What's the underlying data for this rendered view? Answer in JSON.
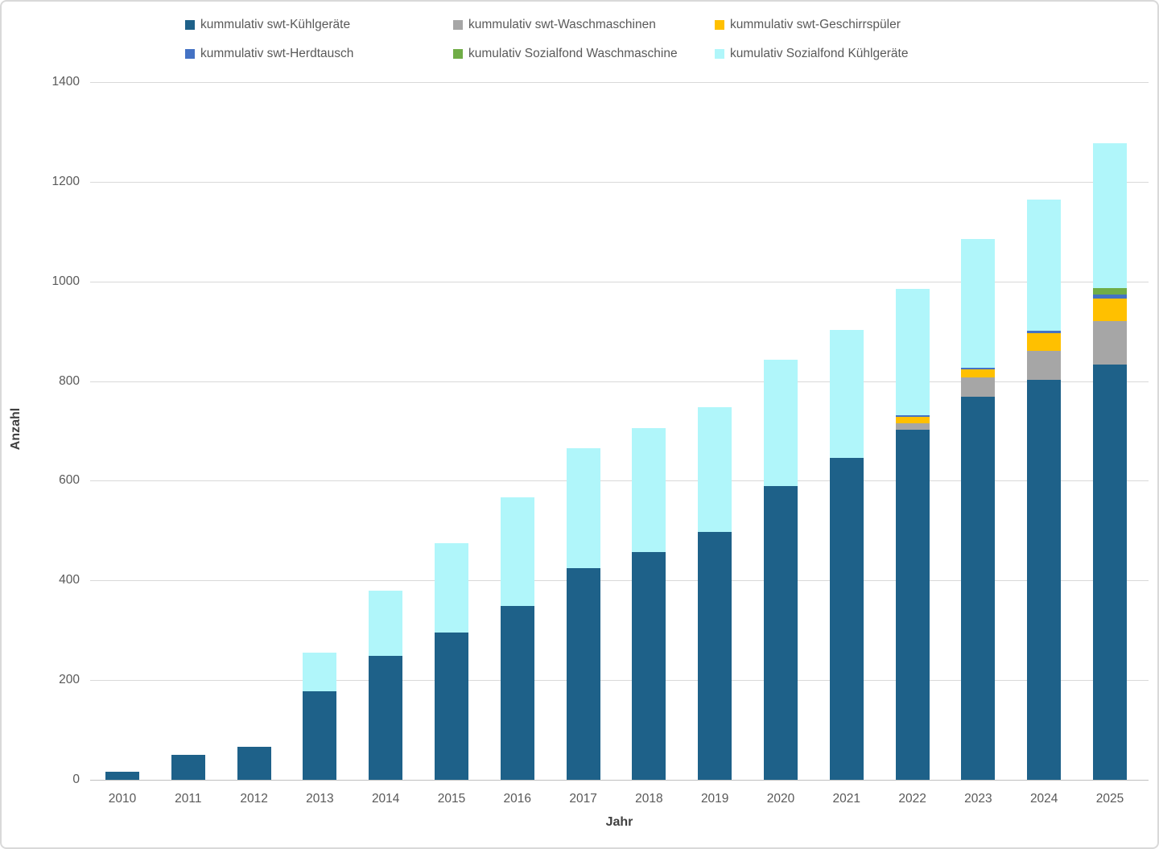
{
  "chart_data": {
    "type": "bar",
    "stacked": true,
    "title": "",
    "xlabel": "Jahr",
    "ylabel": "Anzahl",
    "ylim": [
      0,
      1400
    ],
    "ytick_step": 200,
    "grid": "horizontal",
    "legend_position": "top",
    "categories": [
      "2010",
      "2011",
      "2012",
      "2013",
      "2014",
      "2015",
      "2016",
      "2017",
      "2018",
      "2019",
      "2020",
      "2021",
      "2022",
      "2023",
      "2024",
      "2025"
    ],
    "series": [
      {
        "name": "kummulativ swt-Kühlgeräte",
        "color": "#1e6189",
        "values": [
          16,
          50,
          66,
          177,
          248,
          296,
          348,
          425,
          457,
          497,
          590,
          646,
          702,
          768,
          802,
          834
        ]
      },
      {
        "name": "kummulativ swt-Waschmaschinen",
        "color": "#a6a6a6",
        "values": [
          0,
          0,
          0,
          0,
          0,
          0,
          0,
          0,
          0,
          0,
          0,
          0,
          14,
          40,
          59,
          86
        ]
      },
      {
        "name": "kummulativ swt-Geschirrspüler",
        "color": "#ffc000",
        "values": [
          0,
          0,
          0,
          0,
          0,
          0,
          0,
          0,
          0,
          0,
          0,
          0,
          12,
          16,
          35,
          46
        ]
      },
      {
        "name": "kummulativ swt-Herdtausch",
        "color": "#4472c4",
        "values": [
          0,
          0,
          0,
          0,
          0,
          0,
          0,
          0,
          0,
          0,
          0,
          0,
          3,
          3,
          5,
          8
        ]
      },
      {
        "name": "kumulativ Sozialfond Waschmaschine",
        "color": "#70ad47",
        "values": [
          0,
          0,
          0,
          0,
          0,
          0,
          0,
          0,
          0,
          0,
          0,
          0,
          0,
          0,
          0,
          13
        ]
      },
      {
        "name": "kumulativ Sozialfond Kühlgeräte",
        "color": "#b0f6fa",
        "values": [
          0,
          0,
          0,
          78,
          131,
          178,
          218,
          240,
          249,
          250,
          253,
          256,
          254,
          258,
          264,
          291
        ]
      }
    ],
    "totals": [
      16,
      50,
      66,
      255,
      379,
      474,
      566,
      665,
      706,
      747,
      843,
      902,
      985,
      1085,
      1165,
      1278
    ],
    "ytick_labels": [
      "0",
      "200",
      "400",
      "600",
      "800",
      "1000",
      "1200",
      "1400"
    ]
  },
  "colors": {
    "gridline": "#d9d9d9",
    "axis_line": "#bfbfbf",
    "tick_text": "#595959",
    "axis_title_text": "#404040"
  }
}
